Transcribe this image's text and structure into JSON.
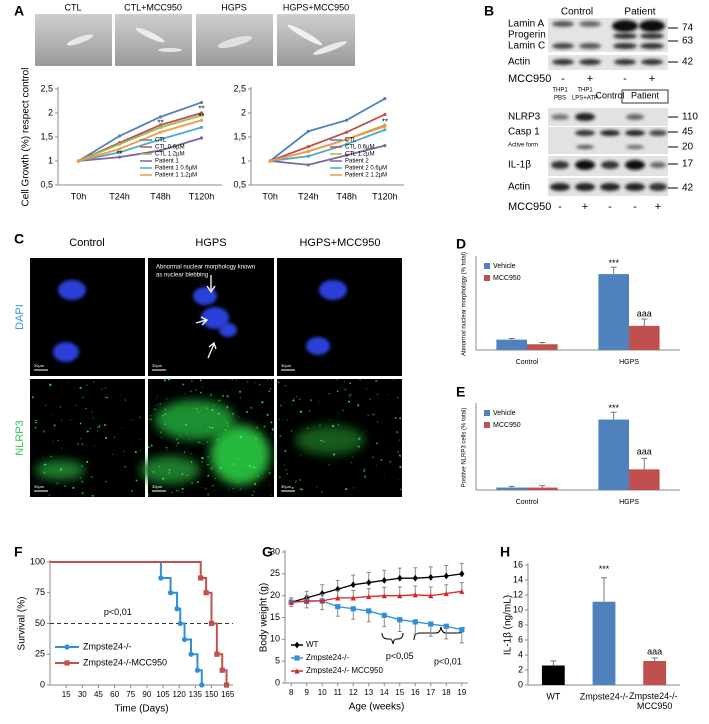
{
  "panel_labels": [
    "A",
    "B",
    "C",
    "D",
    "E",
    "F",
    "G",
    "H"
  ],
  "cell_images": [
    "CTL",
    "CTL+MCC950",
    "HGPS",
    "HGPS+MCC950"
  ],
  "western_blot_1": {
    "groups": [
      "Control",
      "Patient"
    ],
    "rows": [
      "Lamin A",
      "Progerin",
      "Lamin C",
      "Actin"
    ],
    "sizes": [
      "74",
      "63",
      "42"
    ],
    "treatment": "MCC950",
    "signs": [
      "-",
      "+",
      "-",
      "+"
    ]
  },
  "western_blot_2": {
    "lanes": [
      [
        "THP1",
        "PBS"
      ],
      [
        "THP1",
        "LPS+ATP"
      ]
    ],
    "groups": [
      "Control",
      "Patient"
    ],
    "rows": [
      "NLRP3",
      "Casp 1",
      "Active form",
      "IL-1β",
      "Actin"
    ],
    "sizes": [
      "110",
      "45",
      "20",
      "17",
      "42"
    ],
    "treatment": "MCC950",
    "signs": [
      "-",
      "+",
      "-",
      "-",
      "+"
    ]
  },
  "microscopy": {
    "columns": [
      "Control",
      "HGPS",
      "HGPS+MCC950"
    ],
    "rows": [
      "DAPI",
      "NLRP3"
    ],
    "annotation_lines": [
      "Abnormal nuclear morphology known",
      "as nuclear blebbing"
    ],
    "scale_bar": "30μm"
  },
  "chart_data": [
    {
      "type": "line",
      "ylabel": "Cell Growth (%) respect control",
      "categories": [
        "T0h",
        "T24h",
        "T48h",
        "T120h"
      ],
      "ylim": [
        0.5,
        2.5
      ],
      "yticks": [
        {
          "value": 0.5,
          "label": "0,5"
        },
        1,
        {
          "value": 1.5,
          "label": "1,5"
        },
        2,
        {
          "value": 2.5,
          "label": "2,5"
        }
      ],
      "legend": "lower right",
      "series": [
        {
          "name": "CTL",
          "color": "#4f81bd",
          "values": [
            1,
            1.52,
            1.92,
            2.22
          ]
        },
        {
          "name": "CTL 0.6µM",
          "color": "#c0504d",
          "values": [
            1,
            1.38,
            1.75,
            2.0
          ]
        },
        {
          "name": "CTL 1.2µM",
          "color": "#9bbb59",
          "values": [
            1,
            1.35,
            1.7,
            1.95
          ]
        },
        {
          "name": "Patient 1",
          "color": "#8064a2",
          "values": [
            1,
            1.08,
            1.22,
            1.48
          ]
        },
        {
          "name": "Patient 1 0.6µM",
          "color": "#4bacc6",
          "values": [
            1,
            1.18,
            1.45,
            1.7
          ]
        },
        {
          "name": "Patient 1 1.2µM",
          "color": "#f79646",
          "values": [
            1,
            1.25,
            1.6,
            1.85
          ]
        }
      ],
      "annotations": [
        {
          "text": "**",
          "x": "T24h",
          "y": 1.14
        },
        {
          "text": "**",
          "x": "T48h",
          "y": 1.78
        },
        {
          "text": "**",
          "x": "T120h",
          "y": 2.08
        },
        {
          "text": "**",
          "x": "T120h",
          "y": 1.92
        }
      ]
    },
    {
      "type": "line",
      "categories": [
        "T0h",
        "T24h",
        "T48h",
        "T120h"
      ],
      "ylim": [
        0.5,
        2.5
      ],
      "yticks": [
        {
          "value": 0.5,
          "label": "0,5"
        },
        1,
        {
          "value": 1.5,
          "label": "1,5"
        },
        2,
        {
          "value": 2.5,
          "label": "2,5"
        }
      ],
      "legend": "lower right",
      "series": [
        {
          "name": "CTL",
          "color": "#4f81bd",
          "values": [
            1,
            1.62,
            1.85,
            2.3
          ]
        },
        {
          "name": "CTL 0.6µM",
          "color": "#c0504d",
          "values": [
            1,
            1.3,
            1.6,
            1.97
          ]
        },
        {
          "name": "CTL 1.2µM",
          "color": "#9bbb59",
          "values": [
            1,
            1.2,
            1.45,
            1.75
          ]
        },
        {
          "name": "Patient 2",
          "color": "#8064a2",
          "values": [
            1,
            0.92,
            1.12,
            1.32
          ]
        },
        {
          "name": "Patient 2 0.6µM",
          "color": "#4bacc6",
          "values": [
            1,
            1.1,
            1.35,
            1.65
          ]
        },
        {
          "name": "Patient 2 1.2µM",
          "color": "#f79646",
          "values": [
            1,
            1.2,
            1.45,
            1.72
          ]
        }
      ],
      "annotations": [
        {
          "text": "**",
          "x": "T120h",
          "y": 1.8
        }
      ]
    },
    {
      "type": "bar",
      "ylabel": "Abnormal nuclear morphology (% total)",
      "categories": [
        "Control",
        "HGPS"
      ],
      "ylim": [
        0,
        80
      ],
      "legend": "upper left",
      "series": [
        {
          "name": "Vehicle",
          "color": "#4f81bd",
          "values": [
            9,
            66
          ],
          "errors": [
            1,
            6
          ]
        },
        {
          "name": "MCC950",
          "color": "#c0504d",
          "values": [
            5,
            21
          ],
          "errors": [
            1.5,
            6
          ]
        }
      ],
      "annotations": [
        {
          "text": "***",
          "x": "HGPS",
          "series": "Vehicle",
          "y": 75
        },
        {
          "text": "aaa",
          "x": "HGPS",
          "series": "MCC950",
          "y": 31
        }
      ]
    },
    {
      "type": "bar",
      "ylabel": "Positive NLRP3 cells (% total)",
      "categories": [
        "Control",
        "HGPS"
      ],
      "ylim": [
        0,
        35
      ],
      "legend": "upper left",
      "series": [
        {
          "name": "Vehicle",
          "color": "#4f81bd",
          "values": [
            1,
            29
          ],
          "errors": [
            0.5,
            3
          ]
        },
        {
          "name": "MCC950",
          "color": "#c0504d",
          "values": [
            1,
            8.5
          ],
          "errors": [
            0.8,
            4.5
          ]
        }
      ],
      "annotations": [
        {
          "text": "***",
          "x": "HGPS",
          "series": "Vehicle",
          "y": 33.5
        },
        {
          "text": "aaa",
          "x": "HGPS",
          "series": "MCC950",
          "y": 15.5
        }
      ]
    },
    {
      "type": "step",
      "xlabel": "Time (Days)",
      "ylabel": "Survival (%)",
      "xlim": [
        0,
        170
      ],
      "xticks": [
        15,
        30,
        45,
        60,
        75,
        90,
        105,
        120,
        135,
        150,
        165
      ],
      "ylim": [
        0,
        100
      ],
      "yticks": [
        0,
        25,
        50,
        75,
        100
      ],
      "hline": 50,
      "legend": "lower left",
      "series": [
        {
          "name": "Zmpste24-/-",
          "color": "#2f8fd8",
          "marker": "circle",
          "x": [
            0,
            103,
            112,
            118,
            121,
            125,
            131,
            137,
            141
          ],
          "values": [
            100,
            87,
            75,
            62,
            50,
            37,
            25,
            12,
            0
          ]
        },
        {
          "name": "Zmpste24-/-MCC950",
          "color": "#c0504d",
          "marker": "square",
          "x": [
            0,
            140,
            145,
            150,
            155,
            160,
            164
          ],
          "values": [
            100,
            87,
            75,
            50,
            25,
            12,
            0
          ]
        }
      ],
      "annotations": [
        {
          "text": "p<0,01",
          "x": 63,
          "y": 59
        }
      ]
    },
    {
      "type": "line",
      "xlabel": "Age (weeks)",
      "ylabel": "Body weight (g)",
      "x": [
        8,
        9,
        10,
        11,
        12,
        13,
        14,
        15,
        16,
        17,
        18,
        19
      ],
      "xlim": [
        7.6,
        19.4
      ],
      "xticks": [
        8,
        9,
        10,
        11,
        12,
        13,
        14,
        15,
        16,
        17,
        18,
        19
      ],
      "ylim": [
        0,
        30
      ],
      "yticks": [
        0,
        5,
        10,
        15,
        20,
        25,
        30
      ],
      "legend": "lower left",
      "series": [
        {
          "name": "WT",
          "color": "#000000",
          "marker": "diamond",
          "error_side": "up",
          "values": [
            18.5,
            19.5,
            20.5,
            21.5,
            22.5,
            23,
            23.5,
            24,
            24,
            24.2,
            24.5,
            25
          ],
          "errors": [
            1,
            1.5,
            2,
            2,
            2.2,
            2.3,
            2.3,
            2.3,
            2.4,
            2.4,
            2.4,
            2.4
          ]
        },
        {
          "name": "Zmpste24-/-",
          "color": "#2f8fd8",
          "marker": "square",
          "error_side": "down",
          "values": [
            18.5,
            18.7,
            18.8,
            17.5,
            17,
            16.5,
            15.5,
            14.5,
            14,
            13.5,
            13,
            12.2
          ],
          "errors": [
            1,
            1.5,
            2,
            2.2,
            2.4,
            2.5,
            2.6,
            2.7,
            2.8,
            2.8,
            2.9,
            3
          ]
        },
        {
          "name": "Zmpste24-/- MCC950",
          "color": "#d62728",
          "marker": "triangle",
          "error_side": "up",
          "values": [
            18.5,
            18.8,
            18.8,
            19.5,
            19.5,
            19.8,
            20,
            20,
            20.2,
            20,
            20.5,
            21
          ],
          "errors": [
            1,
            1.2,
            1.5,
            1.6,
            1.7,
            1.8,
            1.9,
            2,
            2,
            2,
            2,
            2
          ]
        }
      ],
      "annotations": [
        {
          "text": "p<0,05",
          "x": 15,
          "y": 6
        },
        {
          "text": "p<0,01",
          "x": 18.1,
          "y": 4.8
        }
      ]
    },
    {
      "type": "bar",
      "ylabel": "IL-1β (ng/mL)",
      "categories": [
        "WT",
        "Zmpste24-/-",
        "Zmpste24-/- MCC950"
      ],
      "ylim": [
        0,
        16
      ],
      "yticks": [
        0,
        2,
        4,
        6,
        8,
        10,
        12,
        14,
        16
      ],
      "values": [
        2.6,
        11.1,
        3.2
      ],
      "errors": [
        0.6,
        3.2,
        0.4
      ],
      "colors": [
        "#000000",
        "#4f81bd",
        "#c0504d"
      ],
      "annotations": [
        {
          "text": "***",
          "x": "Zmpste24-/-",
          "y": 15.4
        },
        {
          "text": "aaa",
          "x": "Zmpste24-/- MCC950",
          "y": 4.4
        }
      ]
    }
  ]
}
